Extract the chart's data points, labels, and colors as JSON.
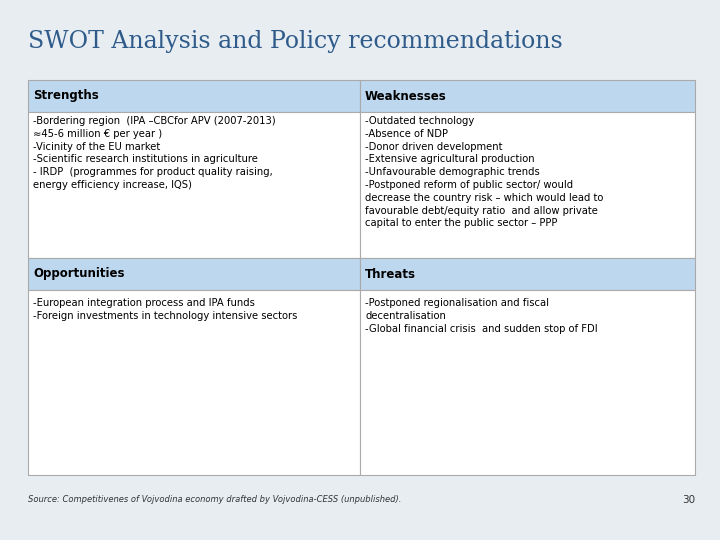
{
  "title": "SWOT Analysis and Policy recommendations",
  "title_color": "#2E5B8A",
  "title_fontsize": 17,
  "slide_bg": "#E8EDF2",
  "header_bg": "#BDD7EE",
  "cell_bg": "#FFFFFF",
  "border_color": "#AAAAAA",
  "header_labels": [
    "Strengths",
    "Weaknesses",
    "Opportunities",
    "Threats"
  ],
  "header_fontsize": 8.5,
  "content_fontsize": 7.2,
  "strengths_text": "-Bordering region  (IPA –CBCfor APV (2007-2013)\n≈45-6 million € per year )\n-Vicinity of the EU market\n-Scientific research institutions in agriculture\n- IRDP  (programmes for product quality raising,\nenergy efficiency increase, IQS)",
  "weaknesses_text": "-Outdated technology\n-Absence of NDP\n-Donor driven development\n-Extensive agricultural production\n-Unfavourable demographic trends\n-Postponed reform of public sector/ would\ndecrease the country risk – which would lead to\nfavourable debt/equity ratio  and allow private\ncapital to enter the public sector – PPP",
  "opportunities_text": "-European integration process and IPA funds\n-Foreign investments in technology intensive sectors",
  "threats_text": "-Postponed regionalisation and fiscal\ndecentralisation\n-Global financial crisis  and sudden stop of FDI",
  "source_text": "Source: Competitivenes of Vojvodina economy drafted by Vojvodina-CESS (unpublished).",
  "page_number": "30"
}
